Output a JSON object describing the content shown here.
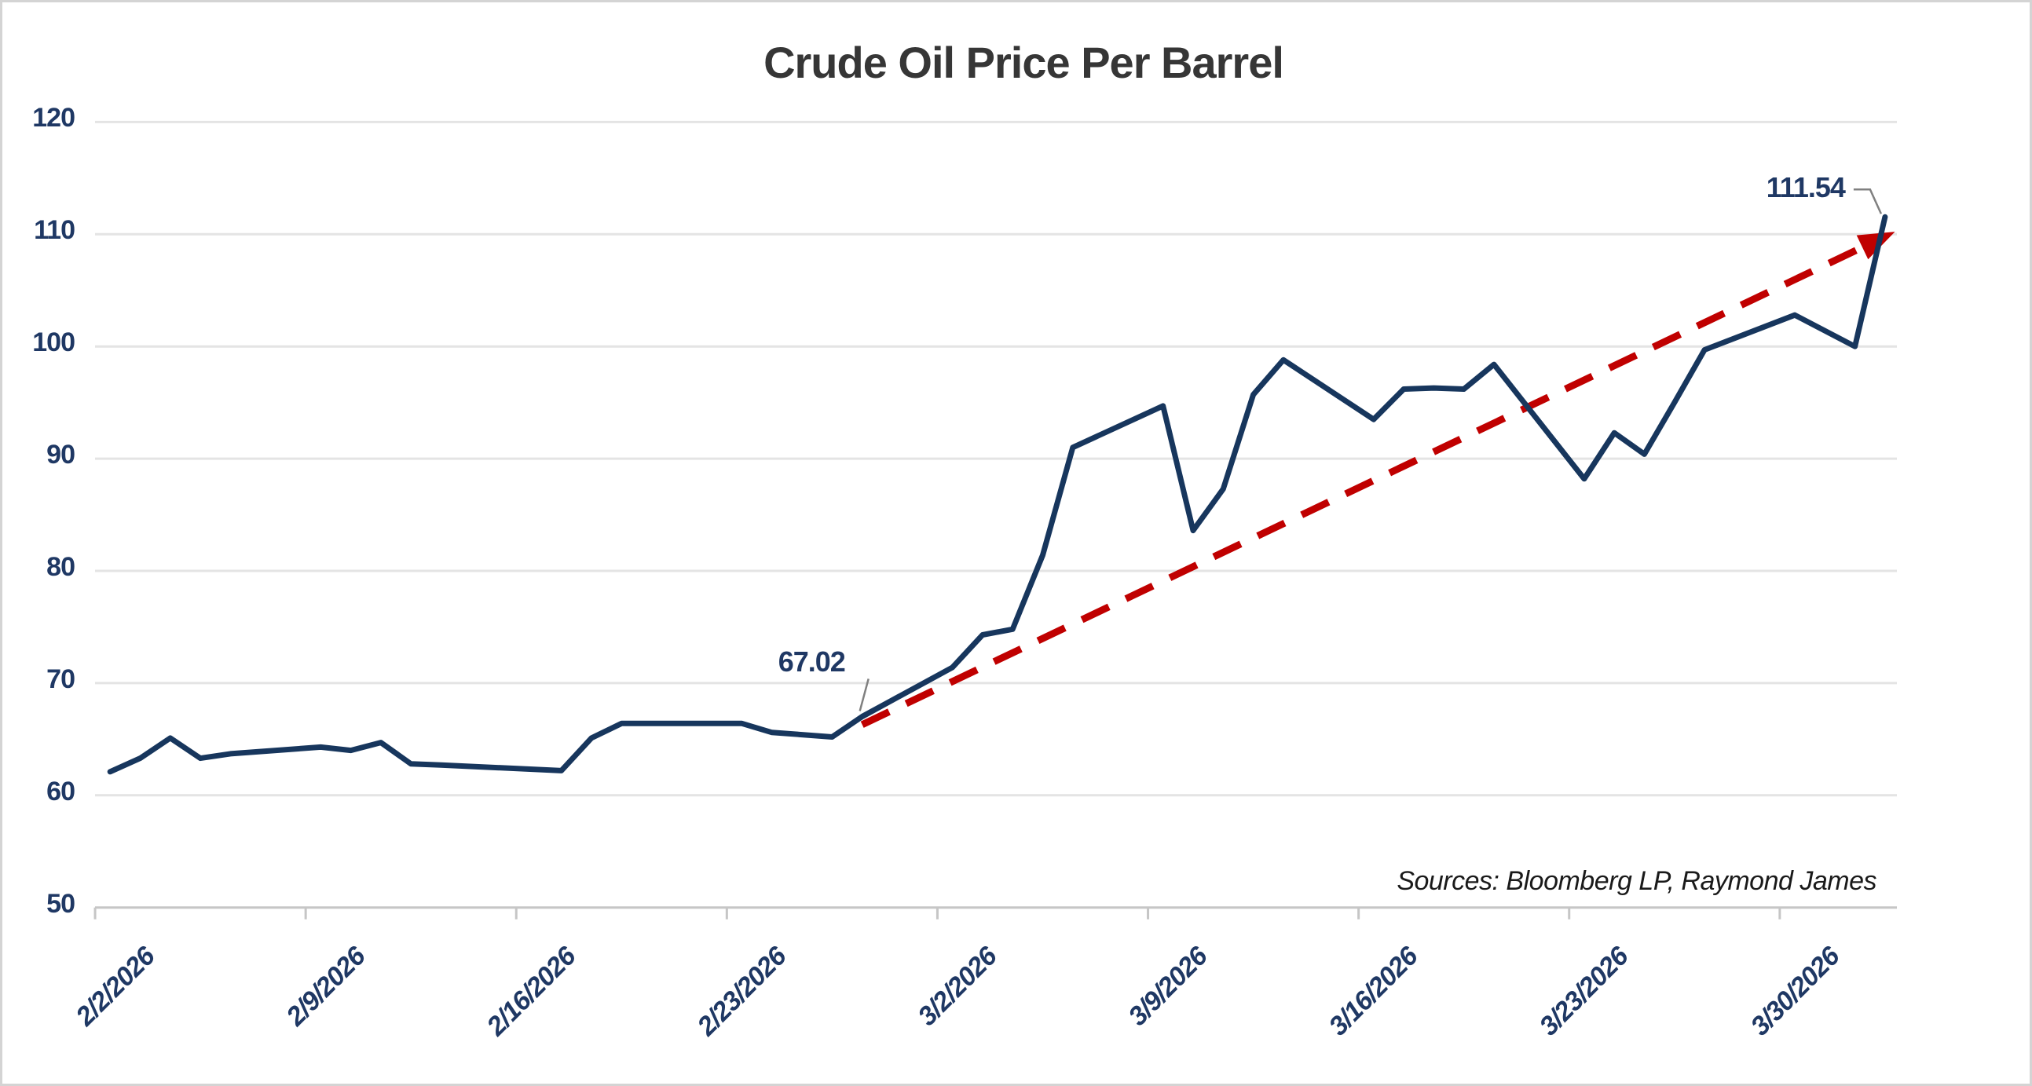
{
  "title": "Crude Oil Price Per Barrel",
  "source_note": "Sources: Bloomberg LP, Raymond James",
  "colors": {
    "line": "#17365D",
    "trend": "#C00000",
    "grid": "#E4E4E4",
    "axis": "#C6C6C6",
    "tick": "#C6C6C6",
    "axis_label": "#1F3864",
    "title": "#363636",
    "leader": "#808080",
    "source_text": "#1A1A1A",
    "border": "#D4D4D4",
    "background": "#FFFFFF"
  },
  "chart_data": {
    "type": "line",
    "series_name": "Crude Oil Price Per Barrel",
    "x": [
      "2/2/2026",
      "2/3/2026",
      "2/4/2026",
      "2/5/2026",
      "2/6/2026",
      "2/9/2026",
      "2/10/2026",
      "2/11/2026",
      "2/12/2026",
      "2/13/2026",
      "2/17/2026",
      "2/18/2026",
      "2/19/2026",
      "2/20/2026",
      "2/23/2026",
      "2/24/2026",
      "2/25/2026",
      "2/26/2026",
      "2/27/2026",
      "3/2/2026",
      "3/3/2026",
      "3/4/2026",
      "3/5/2026",
      "3/6/2026",
      "3/9/2026",
      "3/10/2026",
      "3/11/2026",
      "3/12/2026",
      "3/13/2026",
      "3/16/2026",
      "3/17/2026",
      "3/18/2026",
      "3/19/2026",
      "3/20/2026",
      "3/23/2026",
      "3/24/2026",
      "3/25/2026",
      "3/26/2026",
      "3/27/2026",
      "3/30/2026",
      "3/31/2026",
      "4/1/2026",
      "4/2/2026"
    ],
    "values": [
      62.1,
      63.3,
      65.1,
      63.3,
      63.7,
      64.3,
      64.0,
      64.7,
      62.8,
      62.7,
      62.2,
      65.1,
      66.4,
      66.4,
      66.4,
      65.6,
      65.4,
      65.2,
      67.02,
      71.4,
      74.3,
      74.8,
      81.4,
      91.0,
      94.7,
      83.6,
      87.3,
      95.7,
      98.8,
      93.5,
      96.2,
      96.3,
      96.2,
      98.4,
      88.2,
      92.3,
      90.4,
      95.0,
      99.7,
      102.8,
      101.4,
      100.0,
      111.54
    ],
    "title": "Crude Oil Price Per Barrel",
    "xlabel": "",
    "ylabel": "",
    "ylim": [
      50,
      120
    ],
    "y_ticks": [
      120,
      110,
      100,
      90,
      80,
      70,
      60,
      50
    ],
    "x_tick_labels": [
      "2/2/2026",
      "2/9/2026",
      "2/16/2026",
      "2/23/2026",
      "3/2/2026",
      "3/9/2026",
      "3/16/2026",
      "3/23/2026",
      "3/30/2026"
    ],
    "grid": "horizontal",
    "legend": "none",
    "annotations": [
      {
        "label": "67.02",
        "date": "2/27/2026",
        "value": 67.02
      },
      {
        "label": "111.54",
        "date": "4/2/2026",
        "value": 111.54
      }
    ],
    "trend_line": {
      "style": "dashed",
      "color": "#C00000",
      "arrow": true,
      "start": {
        "date": "2/27/2026",
        "value": 66.3
      },
      "end": {
        "date": "4/2/2026",
        "value": 109.8
      }
    }
  }
}
